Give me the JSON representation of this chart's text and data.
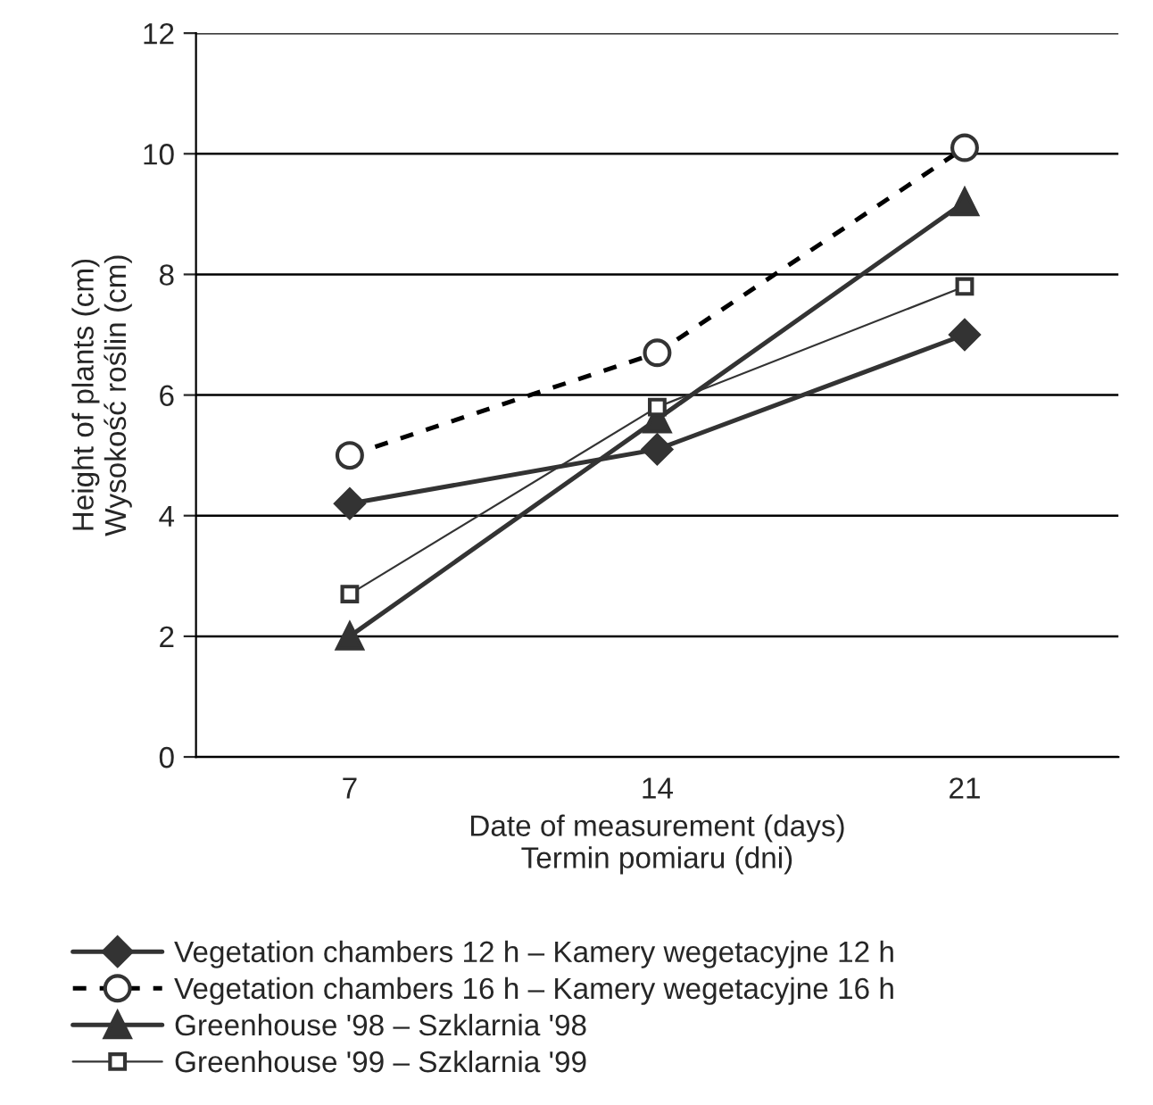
{
  "chart_data": {
    "type": "line",
    "xlabel": "Date of measurement (days)\nTermin pomiaru (dni)",
    "ylabel": "Height of plants (cm)\nWysokość roślin (cm)",
    "categories": [
      "7",
      "14",
      "21"
    ],
    "series": [
      {
        "name": "Vegetation chambers 12 h – Kamery wegetacyjne 12 h",
        "color": "#333333",
        "marker": "diamond",
        "line_style": "solid",
        "values": [
          4.2,
          5.1,
          7.0
        ]
      },
      {
        "name": "Vegetation chambers 16 h – Kamery wegetacyjne 16 h",
        "color": "#000000",
        "marker": "circle",
        "line_style": "dashed",
        "values": [
          5.0,
          6.7,
          10.1
        ]
      },
      {
        "name": "Greenhouse '98 – Szklarnia '98",
        "color": "#333333",
        "marker": "triangle",
        "line_style": "solid",
        "values": [
          2.0,
          5.6,
          9.2
        ]
      },
      {
        "name": "Greenhouse '99 – Szklarnia '99",
        "color": "#333333",
        "marker": "square",
        "line_style": "solid",
        "values": [
          2.7,
          5.8,
          7.8
        ]
      }
    ],
    "ylim": [
      0,
      12
    ],
    "yticks": [
      0,
      2,
      4,
      6,
      8,
      10,
      12
    ],
    "grid": "y",
    "legend": "bottom"
  }
}
